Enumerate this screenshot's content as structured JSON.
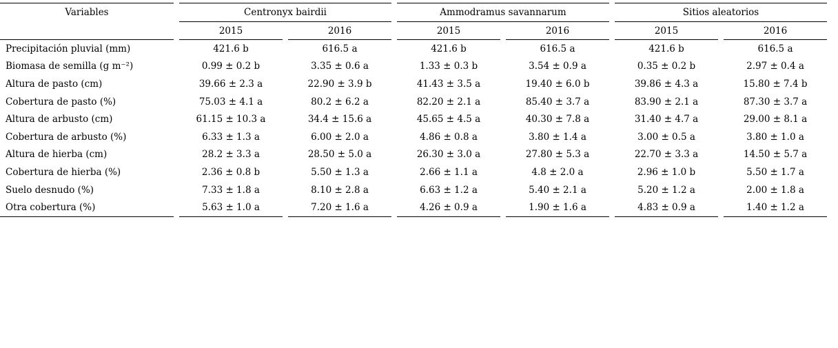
{
  "table": {
    "variables_header": "Variables",
    "groups": [
      {
        "label": "Centronyx bairdii",
        "years": [
          "2015",
          "2016"
        ]
      },
      {
        "label": "Ammodramus savannarum",
        "years": [
          "2015",
          "2016"
        ]
      },
      {
        "label": "Sitios aleatorios",
        "years": [
          "2015",
          "2016"
        ]
      }
    ],
    "rows": [
      {
        "variable": "Precipitación pluvial (mm)",
        "values": [
          "421.6 b",
          "616.5 a",
          "421.6 b",
          "616.5 a",
          "421.6 b",
          "616.5 a"
        ]
      },
      {
        "variable": "Biomasa de semilla (g m⁻²)",
        "values": [
          "0.99 ± 0.2 b",
          "3.35 ± 0.6 a",
          "1.33 ± 0.3 b",
          "3.54 ± 0.9 a",
          "0.35 ± 0.2 b",
          "2.97 ± 0.4 a"
        ]
      },
      {
        "variable": "Altura de pasto (cm)",
        "values": [
          "39.66 ± 2.3 a",
          "22.90 ± 3.9 b",
          "41.43 ± 3.5 a",
          "19.40 ± 6.0 b",
          "39.86 ± 4.3 a",
          "15.80 ± 7.4 b"
        ]
      },
      {
        "variable": "Cobertura de pasto (%)",
        "values": [
          "75.03 ± 4.1 a",
          "80.2 ± 6.2 a",
          "82.20 ± 2.1 a",
          "85.40 ± 3.7 a",
          "83.90 ± 2.1 a",
          "87.30 ± 3.7 a"
        ]
      },
      {
        "variable": "Altura de arbusto (cm)",
        "values": [
          "61.15 ± 10.3 a",
          "34.4 ± 15.6 a",
          "45.65 ± 4.5 a",
          "40.30 ± 7.8 a",
          "31.40 ± 4.7 a",
          "29.00 ± 8.1 a"
        ]
      },
      {
        "variable": "Cobertura de arbusto (%)",
        "values": [
          "6.33 ± 1.3 a",
          "6.00 ± 2.0 a",
          "4.86 ± 0.8 a",
          "3.80 ± 1.4 a",
          "3.00 ± 0.5 a",
          "3.80 ± 1.0 a"
        ]
      },
      {
        "variable": "Altura de hierba (cm)",
        "values": [
          "28.2 ± 3.3 a",
          "28.50 ± 5.0 a",
          "26.30 ± 3.0 a",
          "27.80 ± 5.3 a",
          "22.70 ± 3.3 a",
          "14.50 ± 5.7 a"
        ]
      },
      {
        "variable": "Cobertura de hierba (%)",
        "values": [
          "2.36 ± 0.8 b",
          "5.50 ± 1.3 a",
          "2.66 ± 1.1 a",
          "4.8 ± 2.0 a",
          "2.96 ± 1.0 b",
          "5.50 ± 1.7 a"
        ]
      },
      {
        "variable": "Suelo desnudo (%)",
        "values": [
          "7.33 ± 1.8 a",
          "8.10 ± 2.8 a",
          "6.63 ± 1.2 a",
          "5.40 ± 2.1 a",
          "5.20 ± 1.2 a",
          "2.00 ± 1.8 a"
        ]
      },
      {
        "variable": "Otra cobertura (%)",
        "values": [
          "5.63 ± 1.0 a",
          "7.20 ± 1.6 a",
          "4.26 ± 0.9 a",
          "1.90 ± 1.6 a",
          "4.83 ± 0.9 a",
          "1.40 ± 1.2 a"
        ]
      }
    ]
  }
}
